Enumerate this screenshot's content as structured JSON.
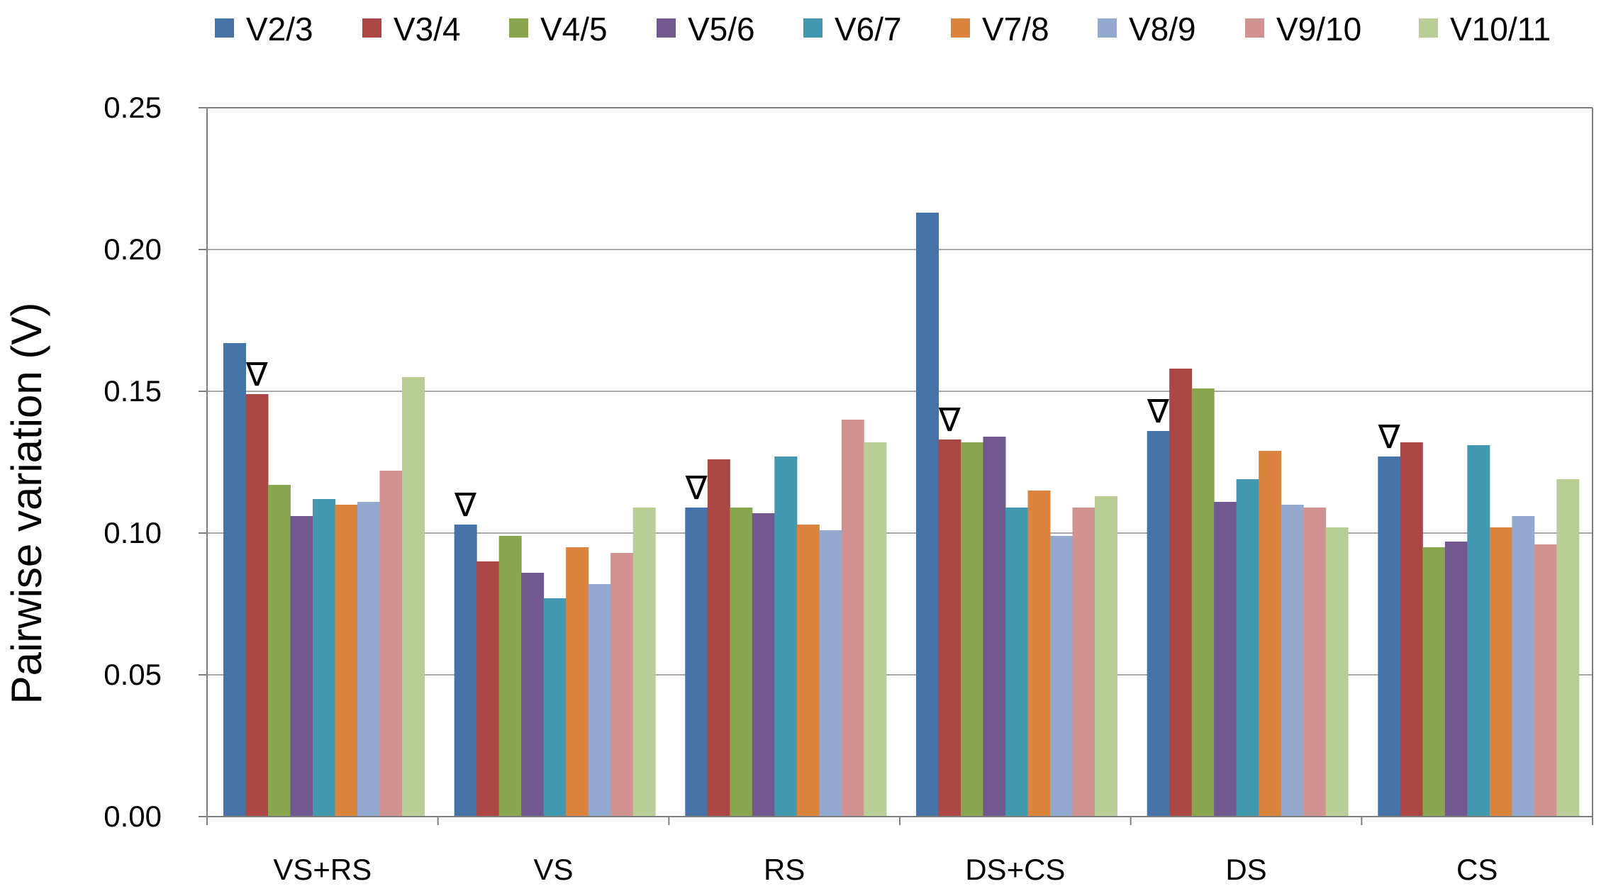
{
  "chart_data": {
    "type": "bar",
    "title": "",
    "xlabel": "",
    "ylabel": "Pairwise variation (V)",
    "ylim": [
      0,
      0.25
    ],
    "yticks": [
      "0.00",
      "0.05",
      "0.10",
      "0.15",
      "0.20",
      "0.25"
    ],
    "yticks_values": [
      0,
      0.05,
      0.1,
      0.15,
      0.2,
      0.25
    ],
    "grid": true,
    "legend_position": "top",
    "categories": [
      "VS+RS",
      "VS",
      "RS",
      "DS+CS",
      "DS",
      "CS"
    ],
    "series": [
      {
        "name": "V2/3",
        "color": "#4572A7",
        "values": [
          0.167,
          0.103,
          0.109,
          0.213,
          0.136,
          0.127
        ]
      },
      {
        "name": "V3/4",
        "color": "#AA4643",
        "values": [
          0.149,
          0.09,
          0.126,
          0.133,
          0.158,
          0.132
        ]
      },
      {
        "name": "V4/5",
        "color": "#89A54E",
        "values": [
          0.117,
          0.099,
          0.109,
          0.132,
          0.151,
          0.095
        ]
      },
      {
        "name": "V5/6",
        "color": "#71588F",
        "values": [
          0.106,
          0.086,
          0.107,
          0.134,
          0.111,
          0.097
        ]
      },
      {
        "name": "V6/7",
        "color": "#4198AF",
        "values": [
          0.112,
          0.077,
          0.127,
          0.109,
          0.119,
          0.131
        ]
      },
      {
        "name": "V7/8",
        "color": "#DB843D",
        "values": [
          0.11,
          0.095,
          0.103,
          0.115,
          0.129,
          0.102
        ]
      },
      {
        "name": "V8/9",
        "color": "#93A9CF",
        "values": [
          0.111,
          0.082,
          0.101,
          0.099,
          0.11,
          0.106
        ]
      },
      {
        "name": "V9/10",
        "color": "#D19392",
        "values": [
          0.122,
          0.093,
          0.14,
          0.109,
          0.109,
          0.096
        ]
      },
      {
        "name": "V10/11",
        "color": "#B9CD96",
        "values": [
          0.155,
          0.109,
          0.132,
          0.113,
          0.102,
          0.119
        ]
      }
    ],
    "annotations": [
      {
        "text": "∇",
        "category": "VS+RS",
        "series": "V3/4"
      },
      {
        "text": "∇",
        "category": "VS",
        "series": "V2/3"
      },
      {
        "text": "∇",
        "category": "RS",
        "series": "V2/3"
      },
      {
        "text": "∇",
        "category": "DS+CS",
        "series": "V3/4"
      },
      {
        "text": "∇",
        "category": "DS",
        "series": "V2/3"
      },
      {
        "text": "∇",
        "category": "CS",
        "series": "V2/3"
      }
    ]
  }
}
